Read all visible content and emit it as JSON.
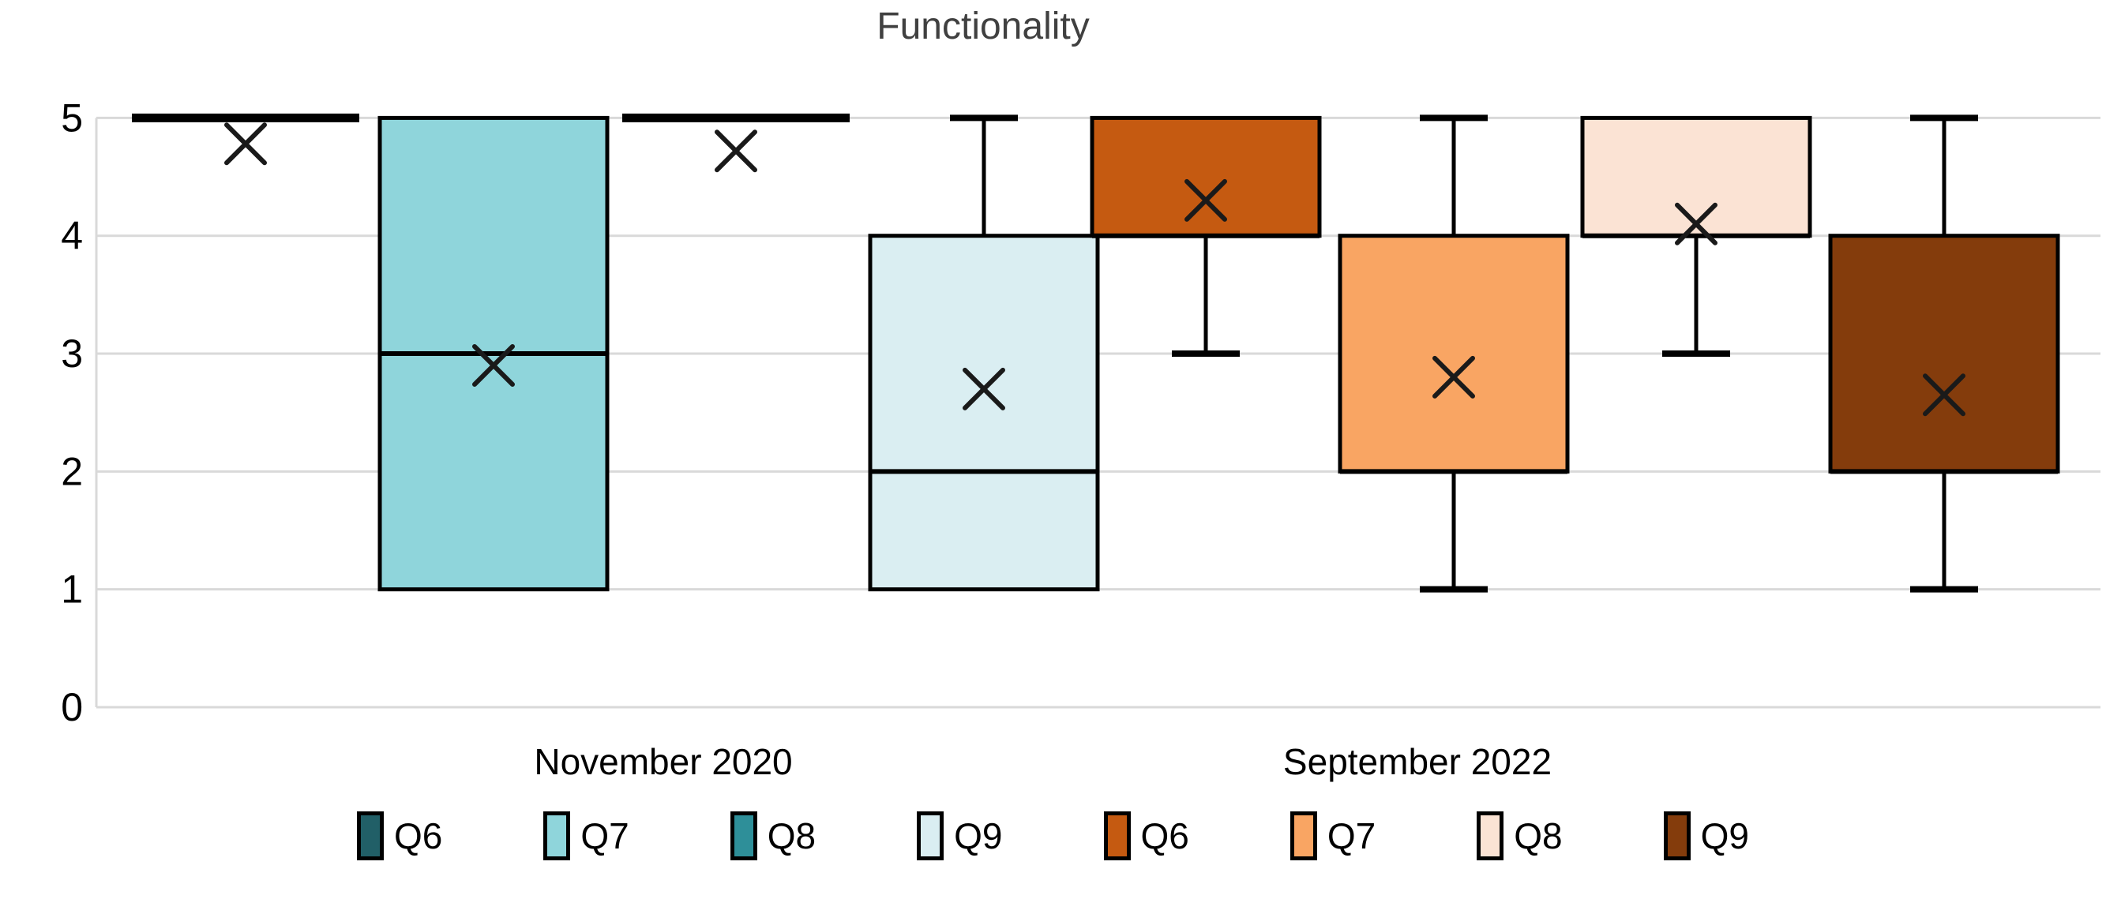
{
  "chart_data": {
    "type": "boxplot",
    "title": "Functionality",
    "grid": true,
    "legend_position": "bottom",
    "y_axis": {
      "min": 0,
      "max": 5,
      "ticks": [
        0,
        1,
        2,
        3,
        4,
        5
      ]
    },
    "categories": [
      "November 2020",
      "September 2022"
    ],
    "series_names": [
      "Q6",
      "Q7",
      "Q8",
      "Q9"
    ],
    "boxes": [
      {
        "category": "November 2020",
        "series": "Q6",
        "color": "#215F67",
        "min": 5,
        "q1": 5,
        "median": 5,
        "q3": 5,
        "max": 5,
        "mean": 4.78
      },
      {
        "category": "November 2020",
        "series": "Q7",
        "color": "#8FD5DB",
        "min": 1,
        "q1": 1,
        "median": 3,
        "q3": 5,
        "max": 5,
        "mean": 2.9
      },
      {
        "category": "November 2020",
        "series": "Q8",
        "color": "#2E8F99",
        "min": 5,
        "q1": 5,
        "median": 5,
        "q3": 5,
        "max": 5,
        "mean": 4.72
      },
      {
        "category": "November 2020",
        "series": "Q9",
        "color": "#DAEEF2",
        "min": 1,
        "q1": 1,
        "median": 2,
        "q3": 4,
        "max": 5,
        "mean": 2.7
      },
      {
        "category": "September 2022",
        "series": "Q6",
        "color": "#C55A11",
        "min": 3,
        "q1": 4,
        "median": 4,
        "q3": 5,
        "max": 5,
        "mean": 4.3
      },
      {
        "category": "September 2022",
        "series": "Q7",
        "color": "#F9A563",
        "min": 1,
        "q1": 2,
        "median": 2,
        "q3": 4,
        "max": 5,
        "mean": 2.8
      },
      {
        "category": "September 2022",
        "series": "Q8",
        "color": "#FBE3D4",
        "min": 3,
        "q1": 4,
        "median": 4,
        "q3": 5,
        "max": 5,
        "mean": 4.1
      },
      {
        "category": "September 2022",
        "series": "Q9",
        "color": "#843C0C",
        "min": 1,
        "q1": 2,
        "median": 2,
        "q3": 4,
        "max": 5,
        "mean": 2.65
      }
    ],
    "legend": [
      {
        "label": "Q6",
        "color": "#215F67"
      },
      {
        "label": "Q7",
        "color": "#8FD5DB"
      },
      {
        "label": "Q8",
        "color": "#2E8F99"
      },
      {
        "label": "Q9",
        "color": "#DAEEF2"
      },
      {
        "label": "Q6",
        "color": "#C55A11"
      },
      {
        "label": "Q7",
        "color": "#F9A563"
      },
      {
        "label": "Q8",
        "color": "#FBE3D4"
      },
      {
        "label": "Q9",
        "color": "#843C0C"
      }
    ],
    "colors": {
      "grid": "#D9D9D9",
      "box_border": "#000000",
      "mean_marker": "#1A1A1A",
      "title_text": "#404040",
      "axis_text": "#000000"
    }
  }
}
